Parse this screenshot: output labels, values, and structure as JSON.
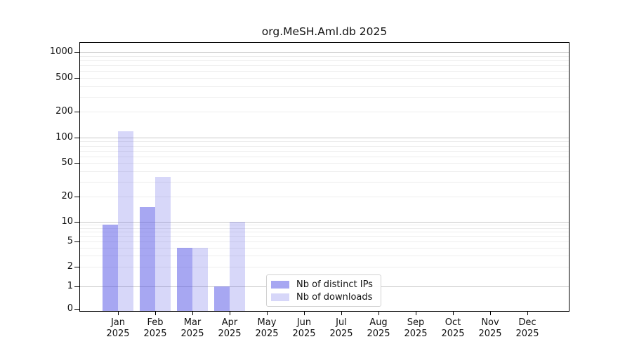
{
  "chart_data": {
    "type": "bar",
    "title": "org.MeSH.Aml.db 2025",
    "year_label": "2025",
    "categories": [
      "Jan",
      "Feb",
      "Mar",
      "Apr",
      "May",
      "Jun",
      "Jul",
      "Aug",
      "Sep",
      "Oct",
      "Nov",
      "Dec"
    ],
    "series": [
      {
        "name": "Nb of distinct IPs",
        "color": "rgba(80,80,230,0.5)",
        "values": [
          9,
          15,
          4,
          1,
          0,
          0,
          0,
          0,
          0,
          0,
          0,
          0
        ]
      },
      {
        "name": "Nb of downloads",
        "color": "rgba(80,80,230,0.23)",
        "values": [
          119,
          34,
          4,
          10,
          0,
          0,
          0,
          0,
          0,
          0,
          0,
          0
        ]
      }
    ],
    "y_ticks": [
      0,
      1,
      2,
      5,
      10,
      20,
      50,
      100,
      200,
      500,
      1000
    ],
    "y_scale": "log above 1, zero pinned at baseline",
    "grid": "horizontal; light minor lines, gray decade lines at 1,10,100,1000",
    "legend_position": "inside lower center"
  },
  "colors": {
    "grid_major": "#c9c9c9",
    "grid_minor": "#ededed",
    "axis": "#000000",
    "text": "#111111",
    "legend_border": "#d2d2d2"
  }
}
